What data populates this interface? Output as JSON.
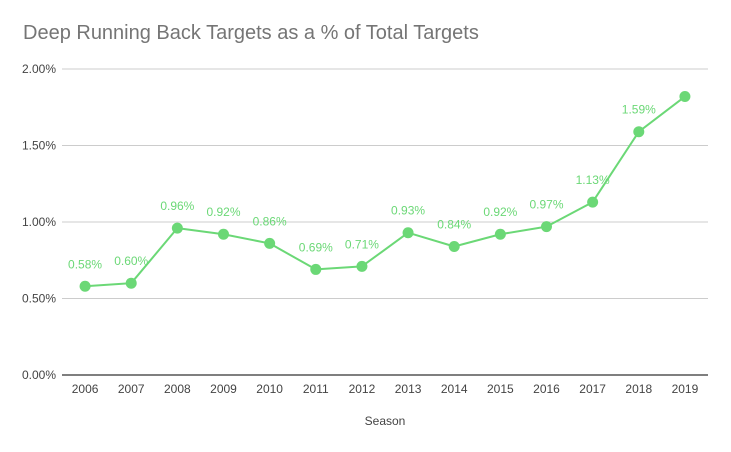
{
  "chart_data": {
    "type": "line",
    "title": "Deep Running Back Targets as a % of Total Targets",
    "xlabel": "Season",
    "ylabel": "",
    "categories": [
      "2006",
      "2007",
      "2008",
      "2009",
      "2010",
      "2011",
      "2012",
      "2013",
      "2014",
      "2015",
      "2016",
      "2017",
      "2018",
      "2019"
    ],
    "series": [
      {
        "values": [
          0.58,
          0.6,
          0.96,
          0.92,
          0.86,
          0.69,
          0.71,
          0.93,
          0.84,
          0.92,
          0.97,
          1.13,
          1.59,
          1.82
        ],
        "data_labels": [
          "0.58%",
          "0.60%",
          "0.96%",
          "0.92%",
          "0.86%",
          "0.69%",
          "0.71%",
          "0.93%",
          "0.84%",
          "0.92%",
          "0.97%",
          "1.13%",
          "1.59%",
          ""
        ]
      }
    ],
    "y_ticks": [
      {
        "value": 0.0,
        "label": "0.00%"
      },
      {
        "value": 0.5,
        "label": "0.50%"
      },
      {
        "value": 1.0,
        "label": "1.00%"
      },
      {
        "value": 1.5,
        "label": "1.50%"
      },
      {
        "value": 2.0,
        "label": "2.00%"
      }
    ],
    "ylim": [
      0,
      2.0
    ],
    "grid": true,
    "legend": "none",
    "colors": {
      "line": "#6bd876",
      "point": "#6bd876",
      "data_label": "#6bd876",
      "grid": "#cccccc",
      "baseline": "#333333",
      "title": "#757575",
      "axis_text": "#444444"
    }
  }
}
